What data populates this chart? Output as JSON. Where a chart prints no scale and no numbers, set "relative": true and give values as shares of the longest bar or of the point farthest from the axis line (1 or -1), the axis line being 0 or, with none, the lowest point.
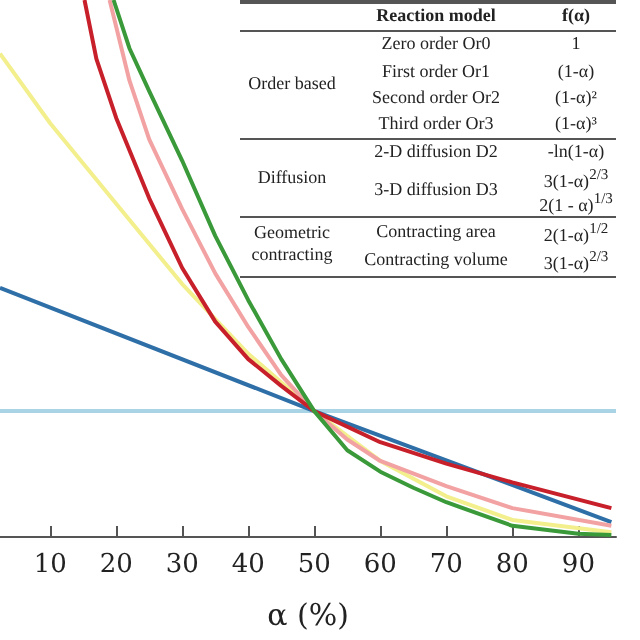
{
  "chart_data": {
    "type": "line",
    "relative": true,
    "xlabel": "α (%)",
    "xlim": [
      2.4,
      95.7
    ],
    "xticks": [
      10,
      20,
      30,
      40,
      50,
      60,
      70,
      80,
      90
    ],
    "grid": false,
    "marker": "none",
    "series": [
      {
        "color": "#a8d4e6",
        "x": [
          2.4,
          50,
          95.7
        ],
        "values": [
          0.233,
          0.233,
          0.233
        ]
      },
      {
        "color": "#2f6fa8",
        "x": [
          2.4,
          50,
          95
        ],
        "values": [
          0.463,
          0.233,
          0.026
        ]
      },
      {
        "color": "#f2ef8c",
        "x": [
          2.4,
          10,
          20,
          30,
          40,
          50,
          60,
          70,
          80,
          95
        ],
        "values": [
          0.9,
          0.77,
          0.62,
          0.47,
          0.34,
          0.233,
          0.14,
          0.074,
          0.03,
          0.007
        ]
      },
      {
        "color": "#f2a2a2",
        "x": [
          19,
          22,
          25,
          30,
          35,
          40,
          45,
          50,
          55,
          60,
          70,
          80,
          95
        ],
        "values": [
          1,
          0.85,
          0.74,
          0.61,
          0.49,
          0.39,
          0.3,
          0.233,
          0.18,
          0.14,
          0.093,
          0.052,
          0.019
        ]
      },
      {
        "color": "#c8202a",
        "x": [
          15.2,
          17,
          20,
          25,
          30,
          35,
          40,
          45,
          50,
          60,
          70,
          80,
          95
        ],
        "values": [
          1,
          0.89,
          0.78,
          0.63,
          0.5,
          0.4,
          0.33,
          0.28,
          0.233,
          0.175,
          0.135,
          0.1,
          0.052
        ]
      },
      {
        "color": "#3a9a3a",
        "x": [
          19.6,
          22,
          25,
          30,
          35,
          40,
          45,
          50,
          55,
          60,
          65,
          70,
          80,
          90,
          95
        ],
        "values": [
          1,
          0.91,
          0.83,
          0.7,
          0.56,
          0.44,
          0.33,
          0.233,
          0.16,
          0.12,
          0.09,
          0.063,
          0.019,
          0.004,
          0.002
        ]
      }
    ],
    "annotations": [
      "Reaction model",
      "f(α)",
      "Order based",
      "Zero order Or0",
      "1",
      "First order Or1",
      "(1-α)",
      "Second order Or2",
      "(1-α)²",
      "Third order Or3",
      "(1-α)³",
      "Diffusion",
      "2-D diffusion D2",
      "-ln(1-α)",
      "3-D diffusion D3",
      "3(1-α)$^{2/3}$",
      "2(1 - α)$^{1/3}$",
      "Geometric contracting",
      "Contracting area",
      "2(1-α)$^{1/2}$",
      "Contracting volume",
      "3(1-α)$^{2/3}$"
    ]
  }
}
